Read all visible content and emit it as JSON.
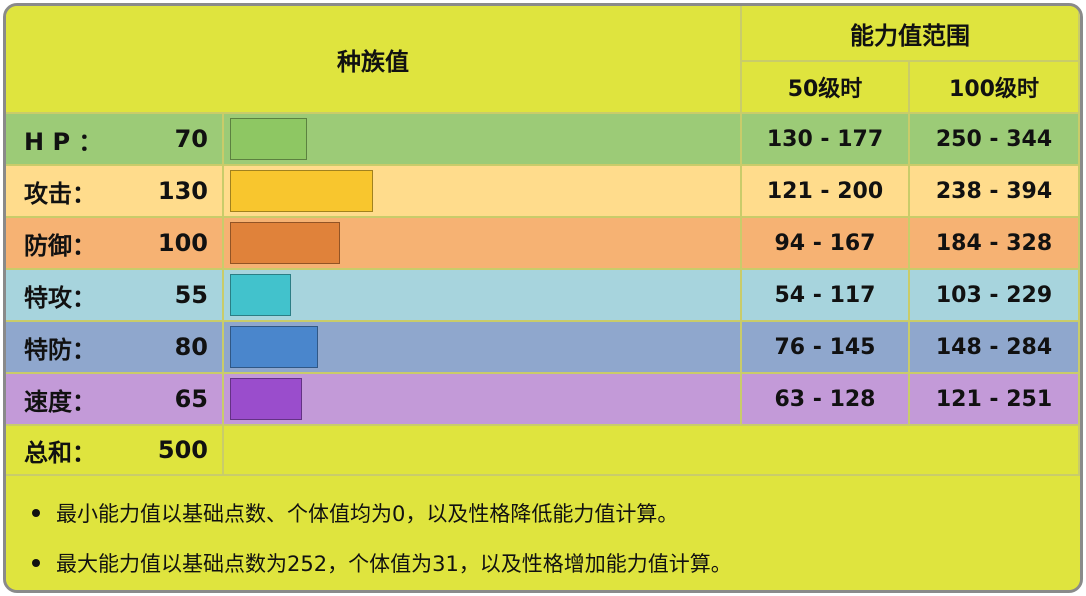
{
  "header": {
    "base_stats": "种族值",
    "stat_range": "能力值范围",
    "lv50": "50级时",
    "lv100": "100级时"
  },
  "stats": [
    {
      "name": "H P ：",
      "value": "70",
      "value_num": 70,
      "lv50": "130 - 177",
      "lv100": "250 - 344",
      "row_color": "#9ccb77",
      "bar_color": "#8ec763"
    },
    {
      "name": "攻击：",
      "value": "130",
      "value_num": 130,
      "lv50": "121 - 200",
      "lv100": "238 - 394",
      "row_color": "#ffdc8c",
      "bar_color": "#f8c62e"
    },
    {
      "name": "防御：",
      "value": "100",
      "value_num": 100,
      "lv50": "94 - 167",
      "lv100": "184 - 328",
      "row_color": "#f6b273",
      "bar_color": "#e0823a"
    },
    {
      "name": "特攻：",
      "value": "55",
      "value_num": 55,
      "lv50": "54 - 117",
      "lv100": "103 - 229",
      "row_color": "#a7d4dd",
      "bar_color": "#42c2cc"
    },
    {
      "name": "特防：",
      "value": "80",
      "value_num": 80,
      "lv50": "76 - 145",
      "lv100": "148 - 284",
      "row_color": "#8fa7cd",
      "bar_color": "#4a86cc"
    },
    {
      "name": "速度：",
      "value": "65",
      "value_num": 65,
      "lv50": "63 - 128",
      "lv100": "121 - 251",
      "row_color": "#c39ad8",
      "bar_color": "#9a4dcc"
    }
  ],
  "total": {
    "name": "总和：",
    "value": "500"
  },
  "notes": [
    "最小能力值以基础点数、个体值均为0，以及性格降低能力值计算。",
    "最大能力值以基础点数为252，个体值为31，以及性格增加能力值计算。"
  ]
}
